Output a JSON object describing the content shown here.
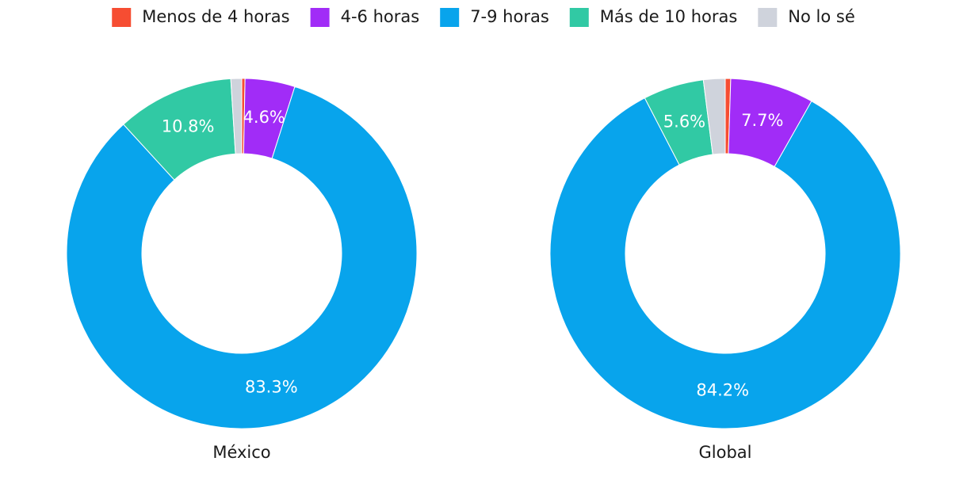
{
  "chart_data": [
    {
      "type": "pie",
      "title": "México",
      "categories": [
        "Menos de 4 horas",
        "4-6 horas",
        "7-9 horas",
        "Más de 10 horas",
        "No lo sé"
      ],
      "colors": [
        "#f64d32",
        "#a12cf7",
        "#08a4ec",
        "#31c9a4",
        "#cfd3dc"
      ],
      "values": [
        0.3,
        4.6,
        83.3,
        10.8,
        1.0
      ],
      "value_labels": [
        null,
        "4.6%",
        "83.3%",
        "10.8%",
        null
      ]
    },
    {
      "type": "pie",
      "title": "Global",
      "categories": [
        "Menos de 4 horas",
        "4-6 horas",
        "7-9 horas",
        "Más de 10 horas",
        "No lo sé"
      ],
      "colors": [
        "#f64d32",
        "#a12cf7",
        "#08a4ec",
        "#31c9a4",
        "#cfd3dc"
      ],
      "values": [
        0.5,
        7.7,
        84.2,
        5.6,
        2.0
      ],
      "value_labels": [
        null,
        "7.7%",
        "84.2%",
        "5.6%",
        null
      ]
    }
  ]
}
